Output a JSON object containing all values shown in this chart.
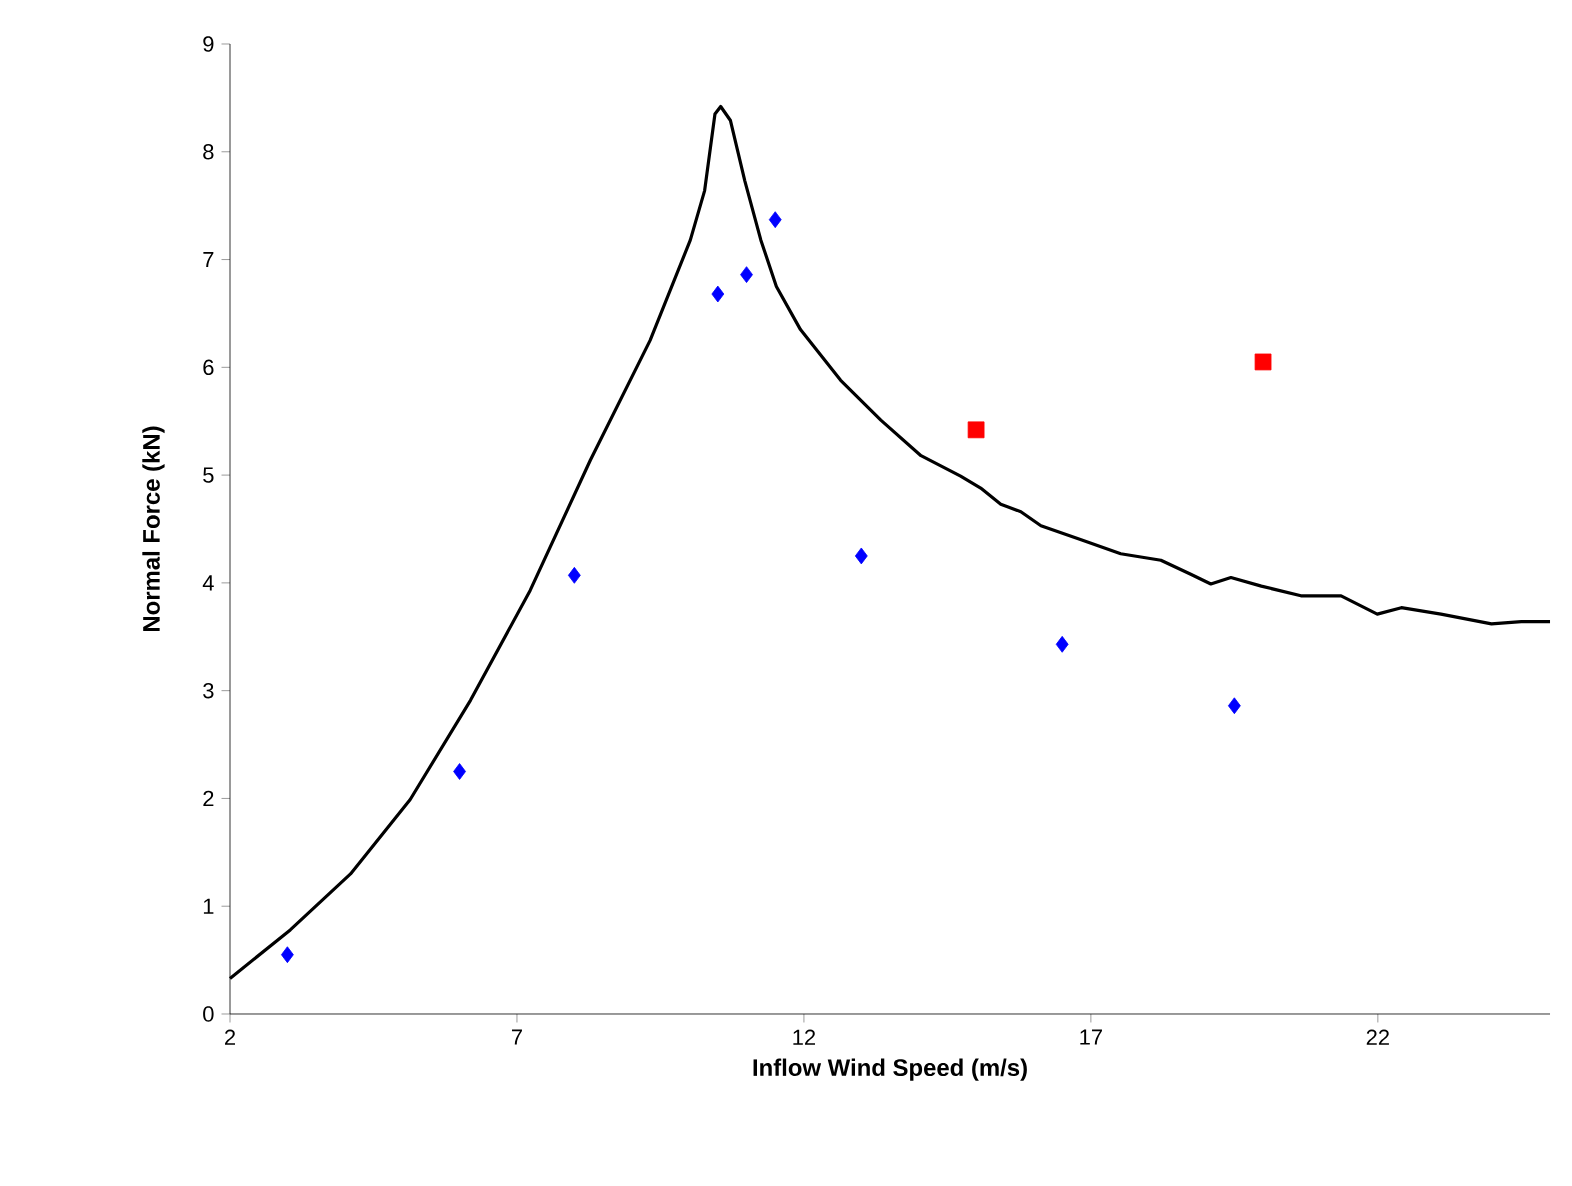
{
  "chart_data": {
    "type": "scatter",
    "xlabel": "Inflow Wind Speed (m/s)",
    "ylabel": "Normal Force (kN)",
    "xlim": [
      2,
      25
    ],
    "ylim": [
      0,
      9
    ],
    "xticks": [
      2,
      7,
      12,
      17,
      22
    ],
    "yticks": [
      0,
      1,
      2,
      3,
      4,
      5,
      6,
      7,
      8,
      9
    ],
    "grid": false,
    "series": [
      {
        "type": "line",
        "color": "#000000",
        "marker": "none",
        "x": [
          2,
          3.05,
          4.1,
          5.14,
          6.19,
          7.23,
          8.28,
          9.32,
          10.02,
          10.27,
          10.45,
          10.55,
          10.72,
          10.97,
          11.25,
          11.52,
          11.94,
          12.64,
          13.34,
          14.04,
          14.73,
          15.08,
          15.43,
          15.78,
          16.13,
          16.83,
          17.52,
          18.22,
          18.74,
          19.09,
          19.44,
          19.97,
          20.66,
          21.36,
          21.99,
          22.41,
          23.1,
          23.98,
          24.5,
          25
        ],
        "values": [
          0.33,
          0.78,
          1.3,
          1.99,
          2.91,
          3.93,
          5.14,
          6.25,
          7.18,
          7.64,
          8.35,
          8.42,
          8.29,
          7.73,
          7.18,
          6.75,
          6.35,
          5.88,
          5.51,
          5.18,
          4.99,
          4.88,
          4.73,
          4.66,
          4.53,
          4.4,
          4.27,
          4.21,
          4.08,
          3.99,
          4.05,
          3.97,
          3.88,
          3.88,
          3.71,
          3.77,
          3.71,
          3.62,
          3.64,
          3.64
        ]
      },
      {
        "color": "#0000ff",
        "marker": "diamond",
        "x": [
          3,
          6,
          8,
          10.5,
          11,
          11.5,
          13,
          16.5,
          19.5
        ],
        "values": [
          0.55,
          2.25,
          4.07,
          6.68,
          6.86,
          7.37,
          4.25,
          3.43,
          2.86
        ]
      },
      {
        "color": "#ff0000",
        "marker": "square",
        "x": [
          15,
          20
        ],
        "values": [
          5.42,
          6.05
        ]
      }
    ]
  }
}
